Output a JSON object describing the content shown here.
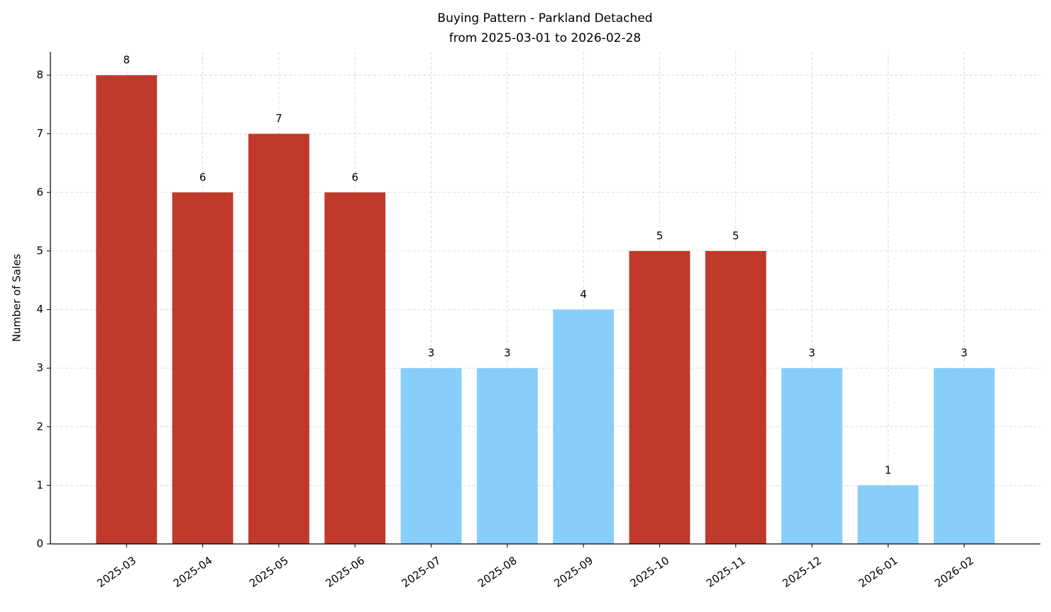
{
  "chart_data": {
    "type": "bar",
    "title": "Buying Pattern - Parkland Detached",
    "subtitle": "from 2025-03-01 to 2026-02-28",
    "y_label": "Number of Sales",
    "categories": [
      "2025-03",
      "2025-04",
      "2025-05",
      "2025-06",
      "2025-07",
      "2025-08",
      "2025-09",
      "2025-10",
      "2025-11",
      "2025-12",
      "2026-01",
      "2026-02"
    ],
    "values": [
      8,
      6,
      7,
      6,
      3,
      3,
      4,
      5,
      5,
      3,
      1,
      3
    ],
    "colors": [
      "#c0392b",
      "#c0392b",
      "#c0392b",
      "#c0392b",
      "#87cefa",
      "#87cefa",
      "#87cefa",
      "#c0392b",
      "#c0392b",
      "#87cefa",
      "#87cefa",
      "#87cefa"
    ],
    "ylim": [
      0,
      8.4
    ],
    "yticks": [
      0,
      1,
      2,
      3,
      4,
      5,
      6,
      7,
      8
    ],
    "grid": true
  }
}
